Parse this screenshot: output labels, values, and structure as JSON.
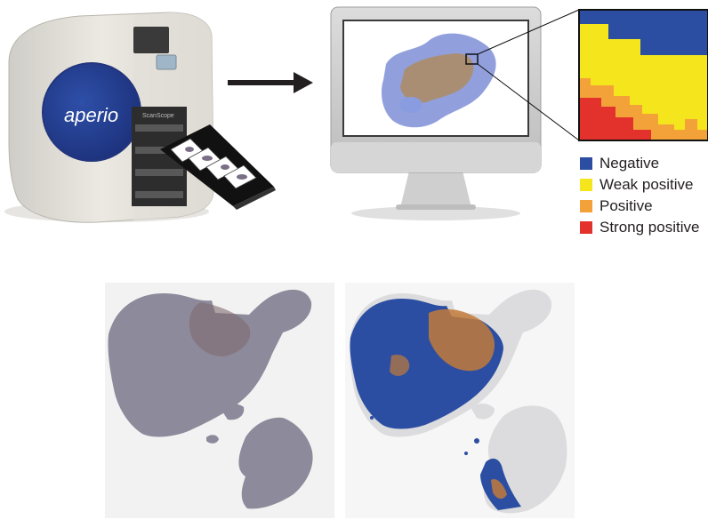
{
  "scanner": {
    "brand_text": "aperio",
    "slot_text": "ScanScope"
  },
  "legend": [
    {
      "label": "Negative",
      "color": "#2b4ea2"
    },
    {
      "label": "Weak positive",
      "color": "#f5e51d"
    },
    {
      "label": "Positive",
      "color": "#f3a23a"
    },
    {
      "label": "Strong positive",
      "color": "#e3322b"
    }
  ],
  "colors": {
    "negative": "#2b4ea2",
    "weak_positive": "#f5e51d",
    "positive": "#f3a23a",
    "strong_positive": "#e3322b",
    "tissue": "#8d8a9b",
    "arrow": "#231f20"
  },
  "icons": [
    "scanner-icon",
    "arrow-right-icon",
    "monitor-icon",
    "slide-tray-icon"
  ]
}
